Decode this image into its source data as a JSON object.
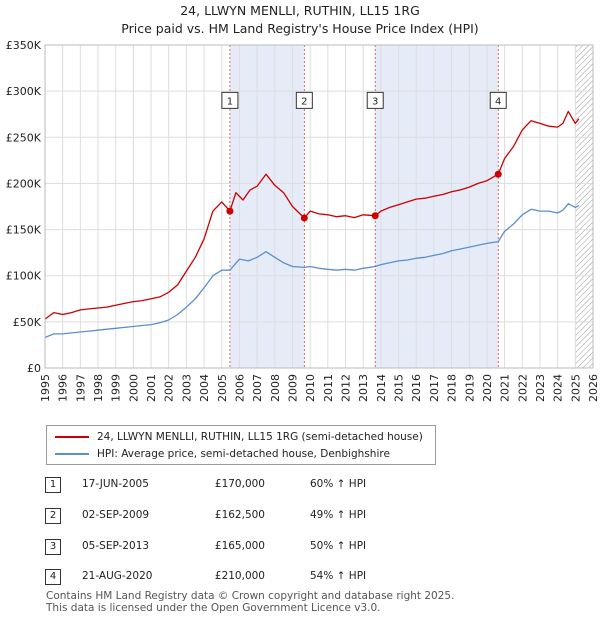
{
  "header": {
    "title": "24, LLWYN MENLLI, RUTHIN, LL15 1RG",
    "subtitle": "Price paid vs. HM Land Registry's House Price Index (HPI)"
  },
  "colors": {
    "property_line": "#cc0000",
    "hpi_line": "#5b8fcc",
    "shade": "#dce6f5",
    "grid": "#dddddd",
    "marker_border": "#cc0000"
  },
  "chart_data": {
    "type": "line",
    "x_range": [
      1995,
      2026
    ],
    "ylim": [
      0,
      350000
    ],
    "y_ticks": [
      {
        "value": 0,
        "label": "£0"
      },
      {
        "value": 50000,
        "label": "£50K"
      },
      {
        "value": 100000,
        "label": "£100K"
      },
      {
        "value": 150000,
        "label": "£150K"
      },
      {
        "value": 200000,
        "label": "£200K"
      },
      {
        "value": 250000,
        "label": "£250K"
      },
      {
        "value": 300000,
        "label": "£300K"
      },
      {
        "value": 350000,
        "label": "£350K"
      }
    ],
    "x_ticks": [
      "1995",
      "1996",
      "1997",
      "1998",
      "1999",
      "2000",
      "2001",
      "2002",
      "2003",
      "2004",
      "2005",
      "2006",
      "2007",
      "2008",
      "2009",
      "2010",
      "2011",
      "2012",
      "2013",
      "2014",
      "2015",
      "2016",
      "2017",
      "2018",
      "2019",
      "2020",
      "2021",
      "2022",
      "2023",
      "2024",
      "2025",
      "2026"
    ],
    "grid": true,
    "shaded_periods": [
      [
        2005.46,
        2009.67
      ],
      [
        2013.68,
        2020.64
      ]
    ],
    "future_hatch_from": 2025.0,
    "series": [
      {
        "name": "24, LLWYN MENLLI, RUTHIN, LL15 1RG (semi-detached house)",
        "color": "#cc0000",
        "points": [
          [
            1995,
            53000
          ],
          [
            1995.5,
            60000
          ],
          [
            1996,
            58000
          ],
          [
            1996.5,
            60000
          ],
          [
            1997,
            63000
          ],
          [
            1997.5,
            64000
          ],
          [
            1998,
            65000
          ],
          [
            1998.5,
            66000
          ],
          [
            1999,
            68000
          ],
          [
            1999.5,
            70000
          ],
          [
            2000,
            72000
          ],
          [
            2000.5,
            73000
          ],
          [
            2001,
            75000
          ],
          [
            2001.5,
            77000
          ],
          [
            2002,
            82000
          ],
          [
            2002.5,
            90000
          ],
          [
            2003,
            105000
          ],
          [
            2003.5,
            120000
          ],
          [
            2004,
            140000
          ],
          [
            2004.5,
            170000
          ],
          [
            2005,
            180000
          ],
          [
            2005.46,
            170000
          ],
          [
            2005.8,
            190000
          ],
          [
            2006.2,
            182000
          ],
          [
            2006.6,
            193000
          ],
          [
            2007,
            197000
          ],
          [
            2007.5,
            210000
          ],
          [
            2008,
            198000
          ],
          [
            2008.5,
            190000
          ],
          [
            2009,
            175000
          ],
          [
            2009.67,
            162500
          ],
          [
            2010,
            170000
          ],
          [
            2010.5,
            167000
          ],
          [
            2011,
            166000
          ],
          [
            2011.5,
            164000
          ],
          [
            2012,
            165000
          ],
          [
            2012.5,
            163000
          ],
          [
            2013,
            166000
          ],
          [
            2013.68,
            165000
          ],
          [
            2014,
            170000
          ],
          [
            2014.5,
            174000
          ],
          [
            2015,
            177000
          ],
          [
            2015.5,
            180000
          ],
          [
            2016,
            183000
          ],
          [
            2016.5,
            184000
          ],
          [
            2017,
            186000
          ],
          [
            2017.5,
            188000
          ],
          [
            2018,
            191000
          ],
          [
            2018.5,
            193000
          ],
          [
            2019,
            196000
          ],
          [
            2019.5,
            200000
          ],
          [
            2020,
            203000
          ],
          [
            2020.64,
            210000
          ],
          [
            2021,
            227000
          ],
          [
            2021.5,
            240000
          ],
          [
            2022,
            258000
          ],
          [
            2022.5,
            268000
          ],
          [
            2023,
            265000
          ],
          [
            2023.5,
            262000
          ],
          [
            2024,
            261000
          ],
          [
            2024.3,
            265000
          ],
          [
            2024.6,
            278000
          ],
          [
            2025,
            265000
          ],
          [
            2025.2,
            270000
          ]
        ]
      },
      {
        "name": "HPI: Average price, semi-detached house, Denbighshire",
        "color": "#5b8fcc",
        "points": [
          [
            1995,
            33000
          ],
          [
            1995.5,
            37000
          ],
          [
            1996,
            37000
          ],
          [
            1996.5,
            38000
          ],
          [
            1997,
            39000
          ],
          [
            1997.5,
            40000
          ],
          [
            1998,
            41000
          ],
          [
            1998.5,
            42000
          ],
          [
            1999,
            43000
          ],
          [
            1999.5,
            44000
          ],
          [
            2000,
            45000
          ],
          [
            2000.5,
            46000
          ],
          [
            2001,
            47000
          ],
          [
            2001.5,
            49000
          ],
          [
            2002,
            52000
          ],
          [
            2002.5,
            58000
          ],
          [
            2003,
            66000
          ],
          [
            2003.5,
            75000
          ],
          [
            2004,
            87000
          ],
          [
            2004.5,
            100000
          ],
          [
            2005,
            106000
          ],
          [
            2005.46,
            106000
          ],
          [
            2006,
            118000
          ],
          [
            2006.5,
            116000
          ],
          [
            2007,
            120000
          ],
          [
            2007.5,
            126000
          ],
          [
            2008,
            120000
          ],
          [
            2008.5,
            114000
          ],
          [
            2009,
            110000
          ],
          [
            2009.67,
            109000
          ],
          [
            2010,
            110000
          ],
          [
            2010.5,
            108000
          ],
          [
            2011,
            107000
          ],
          [
            2011.5,
            106000
          ],
          [
            2012,
            107000
          ],
          [
            2012.5,
            106000
          ],
          [
            2013,
            108000
          ],
          [
            2013.68,
            110000
          ],
          [
            2014,
            112000
          ],
          [
            2014.5,
            114000
          ],
          [
            2015,
            116000
          ],
          [
            2015.5,
            117000
          ],
          [
            2016,
            119000
          ],
          [
            2016.5,
            120000
          ],
          [
            2017,
            122000
          ],
          [
            2017.5,
            124000
          ],
          [
            2018,
            127000
          ],
          [
            2018.5,
            129000
          ],
          [
            2019,
            131000
          ],
          [
            2019.5,
            133000
          ],
          [
            2020,
            135000
          ],
          [
            2020.64,
            137000
          ],
          [
            2021,
            148000
          ],
          [
            2021.5,
            156000
          ],
          [
            2022,
            166000
          ],
          [
            2022.5,
            172000
          ],
          [
            2023,
            170000
          ],
          [
            2023.5,
            170000
          ],
          [
            2024,
            168000
          ],
          [
            2024.3,
            171000
          ],
          [
            2024.6,
            178000
          ],
          [
            2025,
            174000
          ],
          [
            2025.2,
            176000
          ]
        ]
      }
    ],
    "markers": [
      {
        "id": "1",
        "x": 2005.46,
        "y": 170000
      },
      {
        "id": "2",
        "x": 2009.67,
        "y": 162500
      },
      {
        "id": "3",
        "x": 2013.68,
        "y": 165000
      },
      {
        "id": "4",
        "x": 2020.64,
        "y": 210000
      }
    ],
    "marker_box_y": 290000
  },
  "legend": {
    "items": [
      {
        "label": "24, LLWYN MENLLI, RUTHIN, LL15 1RG (semi-detached house)",
        "color": "#cc0000"
      },
      {
        "label": "HPI: Average price, semi-detached house, Denbighshire",
        "color": "#5b8fcc"
      }
    ]
  },
  "transactions": [
    {
      "id": "1",
      "date": "17-JUN-2005",
      "price": "£170,000",
      "hpi": "60% ↑ HPI"
    },
    {
      "id": "2",
      "date": "02-SEP-2009",
      "price": "£162,500",
      "hpi": "49% ↑ HPI"
    },
    {
      "id": "3",
      "date": "05-SEP-2013",
      "price": "£165,000",
      "hpi": "50% ↑ HPI"
    },
    {
      "id": "4",
      "date": "21-AUG-2020",
      "price": "£210,000",
      "hpi": "54% ↑ HPI"
    }
  ],
  "footer": {
    "line1": "Contains HM Land Registry data © Crown copyright and database right 2025.",
    "line2": "This data is licensed under the Open Government Licence v3.0."
  }
}
